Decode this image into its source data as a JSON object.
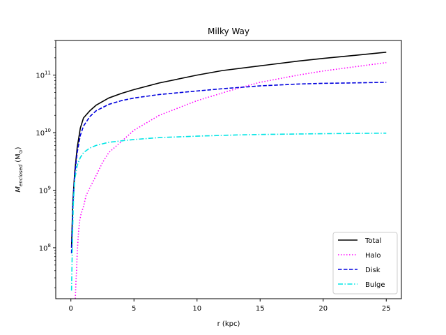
{
  "chart_data": {
    "type": "line",
    "title": "Milky Way",
    "xlabel": "r (kpc)",
    "ylabel_main": "M",
    "ylabel_sub": "enclosed",
    "ylabel_unit": "(M",
    "ylabel_unit_sub": "⊙",
    "ylabel_unit_close": ")",
    "xlim": [
      -1.2,
      26.2
    ],
    "ylim": [
      13000000,
      400000000000
    ],
    "yscale": "log",
    "x_ticks": [
      0,
      5,
      10,
      15,
      20,
      25
    ],
    "x_tick_labels": [
      "0",
      "5",
      "10",
      "15",
      "20",
      "25"
    ],
    "y_ticks": [
      100000000,
      1000000000,
      10000000000,
      100000000000
    ],
    "y_tick_base": "10",
    "y_tick_exponents": [
      "8",
      "9",
      "10",
      "11"
    ],
    "legend_position": "lower-right",
    "series": [
      {
        "name": "Total",
        "color": "#000000",
        "dash": "solid",
        "x": [
          0.05,
          0.15,
          0.3,
          0.5,
          0.75,
          1.0,
          1.5,
          2.0,
          3.0,
          4.0,
          5.0,
          7.0,
          10.0,
          12.0,
          15.0,
          18.0,
          20.0,
          22.0,
          25.0
        ],
        "y": [
          100000000,
          600000000,
          2000000000,
          5500000000,
          12000000000,
          18000000000,
          24000000000,
          30000000000,
          40000000000,
          48000000000,
          56000000000,
          73000000000,
          100000000000,
          120000000000,
          145000000000,
          175000000000,
          195000000000,
          215000000000,
          250000000000
        ]
      },
      {
        "name": "Halo",
        "color": "#ff00ff",
        "dash": "dotted",
        "x": [
          0.35,
          0.4,
          0.45,
          0.5,
          0.6,
          0.7,
          0.8,
          1.0,
          1.2,
          1.5,
          2.0,
          2.5,
          3.0,
          4.0,
          5.0,
          7.0,
          10.0,
          13.0,
          15.0,
          18.0,
          20.0,
          22.0,
          25.0
        ],
        "y": [
          13000000,
          25000000,
          40000000,
          80000000,
          180000000,
          300000000,
          380000000,
          520000000,
          800000000,
          1100000000,
          1800000000,
          3000000000,
          4500000000,
          7000000000,
          11000000000,
          20000000000,
          36000000000,
          57000000000,
          75000000000,
          100000000000,
          118000000000,
          135000000000,
          165000000000
        ]
      },
      {
        "name": "Disk",
        "color": "#0000dd",
        "dash": "dashed",
        "x": [
          0.05,
          0.15,
          0.3,
          0.5,
          0.75,
          1.0,
          1.5,
          2.0,
          3.0,
          4.0,
          5.0,
          7.0,
          10.0,
          12.0,
          15.0,
          18.0,
          20.0,
          22.0,
          25.0
        ],
        "y": [
          80000000,
          500000000,
          1800000000,
          4500000000,
          9000000000,
          13000000000,
          19000000000,
          24000000000,
          31000000000,
          36000000000,
          40000000000,
          46000000000,
          53000000000,
          58000000000,
          65000000000,
          70000000000,
          72000000000,
          73000000000,
          75000000000
        ]
      },
      {
        "name": "Bulge",
        "color": "#00e5e5",
        "dash": "dashdot",
        "x": [
          0.05,
          0.1,
          0.15,
          0.2,
          0.3,
          0.5,
          0.75,
          1.0,
          1.5,
          2.0,
          3.0,
          4.0,
          5.0,
          7.0,
          10.0,
          13.0,
          15.0,
          20.0,
          25.0
        ],
        "y": [
          18000000,
          70000000,
          250000000,
          600000000,
          1500000000,
          2700000000,
          3700000000,
          4500000000,
          5400000000,
          6000000000,
          6800000000,
          7200000000,
          7600000000,
          8200000000,
          8700000000,
          9100000000,
          9300000000,
          9600000000,
          9800000000
        ]
      }
    ]
  }
}
